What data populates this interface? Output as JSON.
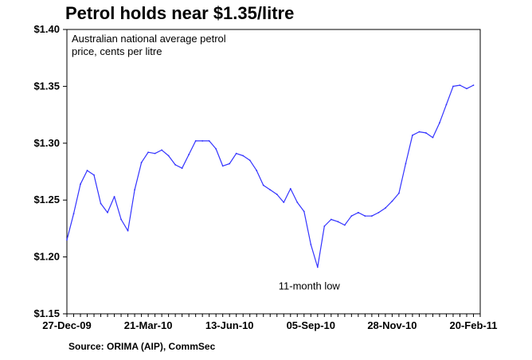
{
  "title": "Petrol holds near $1.35/litre",
  "source": "Source: ORIMA (AIP), CommSec",
  "chart_data": {
    "type": "line",
    "title": "Petrol holds near $1.35/litre",
    "subtitle": "Australian national average petrol price, cents per litre",
    "subtitle_lines": [
      "Australian national average petrol",
      "price, cents per litre"
    ],
    "xlabel": "",
    "ylabel": "",
    "ylim": [
      1.15,
      1.4
    ],
    "y_ticks": [
      1.15,
      1.2,
      1.25,
      1.3,
      1.35,
      1.4
    ],
    "y_tick_labels": [
      "$1.15",
      "$1.20",
      "$1.25",
      "$1.30",
      "$1.35",
      "$1.40"
    ],
    "x_tick_labels": [
      "27-Dec-09",
      "21-Mar-10",
      "13-Jun-10",
      "05-Sep-10",
      "28-Nov-10",
      "20-Feb-11"
    ],
    "x_tick_weeks": [
      0,
      12,
      24,
      36,
      48,
      60
    ],
    "grid": false,
    "line_color": "#3333ff",
    "annotations": [
      {
        "text": "11-month low",
        "week": 36,
        "value": 1.191
      }
    ],
    "series": [
      {
        "values": [
          1.215,
          1.238,
          1.264,
          1.276,
          1.272,
          1.247,
          1.239,
          1.253,
          1.233,
          1.223,
          1.259,
          1.283,
          1.292,
          1.291,
          1.294,
          1.289,
          1.281,
          1.278,
          1.29,
          1.302,
          1.302,
          1.302,
          1.295,
          1.28,
          1.282,
          1.291,
          1.289,
          1.285,
          1.276,
          1.263,
          1.259,
          1.255,
          1.248,
          1.26,
          1.248,
          1.24,
          1.211,
          1.191,
          1.227,
          1.233,
          1.231,
          1.228,
          1.236,
          1.239,
          1.236,
          1.236,
          1.239,
          1.243,
          1.249,
          1.256,
          1.282,
          1.307,
          1.31,
          1.309,
          1.305,
          1.318,
          1.334,
          1.35,
          1.351,
          1.348,
          1.351
        ]
      }
    ]
  }
}
